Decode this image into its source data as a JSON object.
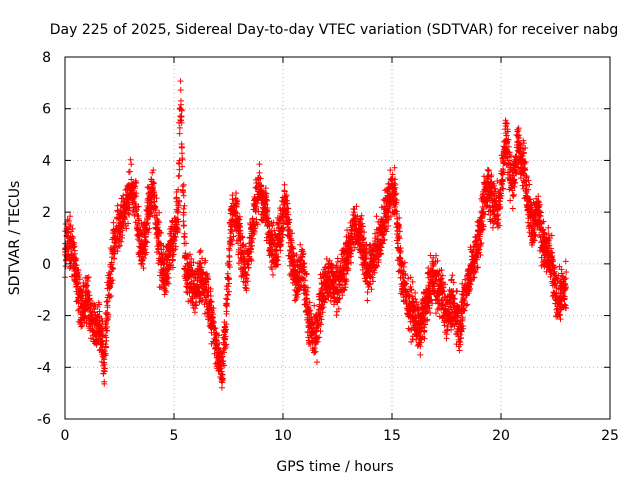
{
  "chart_data": {
    "type": "scatter",
    "title": "Day 225 of 2025, Sidereal Day-to-day VTEC variation (SDTVAR) for receiver nabg",
    "xlabel": "GPS time / hours",
    "ylabel": "SDTVAR / TECUs",
    "xlim": [
      0,
      25
    ],
    "ylim": [
      -6,
      8
    ],
    "xticks": [
      0,
      5,
      10,
      15,
      20,
      25
    ],
    "yticks": [
      -6,
      -4,
      -2,
      0,
      2,
      4,
      6,
      8
    ],
    "grid": true,
    "marker": "plus",
    "color": "#ff0000",
    "x_range_of_data": [
      0,
      23
    ],
    "sampling_interval_hours": 0.01,
    "series": [
      {
        "name": "nabg",
        "note": "approximate centre-line of the point cloud read from the figure; scatter points spread around these values",
        "x": [
          0.0,
          0.1,
          0.2,
          0.4,
          0.5,
          0.7,
          0.9,
          1.0,
          1.2,
          1.4,
          1.5,
          1.7,
          1.8,
          2.0,
          2.2,
          2.5,
          2.7,
          3.0,
          3.2,
          3.4,
          3.6,
          3.8,
          4.0,
          4.2,
          4.4,
          4.6,
          4.8,
          5.0,
          5.2,
          5.3,
          5.5,
          5.8,
          6.0,
          6.2,
          6.5,
          6.8,
          7.0,
          7.2,
          7.4,
          7.6,
          7.8,
          8.0,
          8.3,
          8.6,
          8.9,
          9.2,
          9.5,
          9.8,
          10.1,
          10.3,
          10.6,
          10.9,
          11.2,
          11.5,
          11.8,
          12.1,
          12.4,
          12.7,
          13.0,
          13.3,
          13.6,
          13.9,
          14.2,
          14.5,
          14.8,
          15.1,
          15.4,
          15.7,
          16.0,
          16.3,
          16.6,
          16.9,
          17.2,
          17.5,
          17.8,
          18.1,
          18.4,
          18.7,
          19.0,
          19.3,
          19.6,
          19.9,
          20.2,
          20.5,
          20.8,
          21.1,
          21.4,
          21.7,
          22.0,
          22.3,
          22.6,
          22.9
        ],
        "y": [
          0.5,
          1.0,
          0.8,
          0.2,
          -0.5,
          -1.5,
          -1.8,
          -1.2,
          -2.0,
          -2.5,
          -2.2,
          -3.0,
          -4.0,
          -1.0,
          0.5,
          1.5,
          2.0,
          3.0,
          2.5,
          1.0,
          0.5,
          2.0,
          3.0,
          1.5,
          0.0,
          -0.5,
          0.5,
          1.0,
          2.0,
          6.5,
          0.0,
          -0.8,
          -1.0,
          -0.5,
          -1.0,
          -2.5,
          -3.5,
          -4.2,
          -2.0,
          1.5,
          2.2,
          1.0,
          -0.5,
          1.5,
          3.0,
          2.0,
          0.5,
          1.0,
          2.5,
          1.0,
          -1.0,
          0.0,
          -2.5,
          -2.8,
          -1.0,
          -0.5,
          -1.0,
          -0.5,
          0.5,
          1.5,
          1.0,
          -0.5,
          0.5,
          1.0,
          2.5,
          3.0,
          0.0,
          -1.5,
          -2.0,
          -2.5,
          -1.5,
          -0.5,
          -1.0,
          -2.0,
          -1.5,
          -2.5,
          -1.0,
          0.0,
          1.0,
          3.0,
          2.5,
          2.0,
          5.0,
          3.0,
          4.5,
          3.5,
          1.5,
          2.0,
          0.5,
          0.0,
          -1.5,
          -1.0
        ],
        "spread": 0.9
      }
    ]
  }
}
